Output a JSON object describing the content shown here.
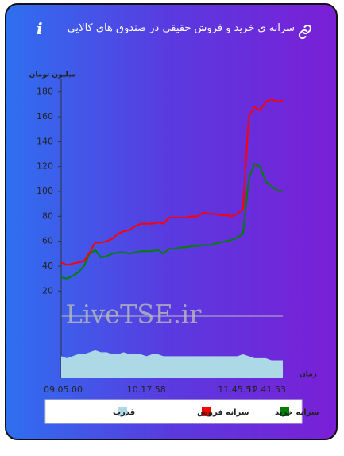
{
  "header": {
    "title": "سرانه ی خرید و فروش حقیقی در صندوق های کالایی"
  },
  "chart_data": {
    "type": "line",
    "y_label": "میلیون تومان",
    "x_label": "زمان",
    "watermark": "LiveTSE.ir",
    "categories": [
      "09.05.00",
      null,
      null,
      null,
      null,
      null,
      null,
      null,
      null,
      null,
      null,
      null,
      null,
      null,
      null,
      "10.17.58",
      null,
      null,
      null,
      null,
      null,
      null,
      null,
      null,
      null,
      null,
      null,
      null,
      null,
      null,
      null,
      "11.45.51",
      null,
      null,
      null,
      null,
      null,
      null,
      null,
      "12.41.53"
    ],
    "ylim": [
      -50,
      190
    ],
    "yticks": [
      20,
      40,
      60,
      80,
      100,
      120,
      140,
      160,
      180
    ],
    "y2lim": [
      0,
      15
    ],
    "grid": false,
    "series": [
      {
        "name": "سرانه خرید",
        "color": "#008000",
        "values": [
          31,
          30,
          32,
          35,
          40,
          50,
          53,
          47,
          48,
          50,
          51,
          51,
          50,
          51,
          52,
          52,
          52,
          53,
          50,
          54,
          54,
          55,
          55,
          56,
          56,
          57,
          57,
          58,
          59,
          60,
          61,
          63,
          66,
          110,
          122,
          120,
          108,
          104,
          101,
          100
        ]
      },
      {
        "name": "سرانه فروش",
        "color": "#ff0000",
        "values": [
          43,
          41,
          42,
          43,
          44,
          51,
          59,
          59,
          60,
          62,
          66,
          68,
          69,
          72,
          74,
          74,
          74,
          75,
          74,
          79,
          79,
          79,
          79,
          80,
          80,
          83,
          82,
          82,
          81,
          81,
          80,
          82,
          86,
          160,
          168,
          165,
          172,
          174,
          172,
          173
        ]
      },
      {
        "name": "قدرت",
        "color": "#add8e6",
        "axis": "y2",
        "type": "area",
        "values": [
          1.1,
          1.0,
          1.1,
          1.2,
          1.2,
          1.3,
          1.4,
          1.3,
          1.3,
          1.2,
          1.2,
          1.3,
          1.2,
          1.2,
          1.2,
          1.1,
          1.2,
          1.2,
          1.1,
          1.1,
          1.1,
          1.1,
          1.1,
          1.1,
          1.1,
          1.1,
          1.1,
          1.1,
          1.1,
          1.1,
          1.1,
          1.1,
          1.2,
          1.1,
          1.0,
          1.0,
          1.0,
          0.9,
          0.9,
          0.9
        ]
      }
    ]
  }
}
